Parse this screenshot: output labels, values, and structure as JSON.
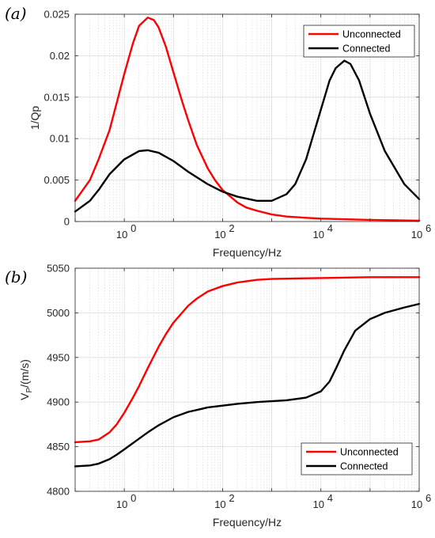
{
  "chart_data": [
    {
      "type": "line",
      "panel_label": "(a)",
      "xlabel": "Frequency/Hz",
      "ylabel": "1/Qp",
      "xscale": "log",
      "xlim": [
        0.1,
        1000000
      ],
      "ylim": [
        0,
        0.025
      ],
      "x_ticks": [
        {
          "value": 1,
          "label": "10",
          "exp": "0"
        },
        {
          "value": 100,
          "label": "10",
          "exp": "2"
        },
        {
          "value": 10000,
          "label": "10",
          "exp": "4"
        },
        {
          "value": 1000000,
          "label": "10",
          "exp": "6"
        }
      ],
      "y_ticks": [
        "0",
        "0.005",
        "0.01",
        "0.015",
        "0.02",
        "0.025"
      ],
      "grid": true,
      "legend_position": "top-right",
      "series": [
        {
          "name": "Unconnected",
          "color": "#ff0000",
          "x": [
            0.1,
            0.2,
            0.3,
            0.5,
            0.7,
            1,
            1.5,
            2,
            3,
            4,
            5,
            7,
            10,
            15,
            20,
            30,
            50,
            70,
            100,
            200,
            300,
            500,
            1000,
            2000,
            5000,
            10000,
            100000,
            1000000
          ],
          "y": [
            0.0025,
            0.005,
            0.0075,
            0.011,
            0.0143,
            0.0178,
            0.0215,
            0.0236,
            0.0246,
            0.0243,
            0.0234,
            0.0211,
            0.018,
            0.0145,
            0.0122,
            0.0092,
            0.0064,
            0.005,
            0.0038,
            0.0023,
            0.0017,
            0.0013,
            0.00085,
            0.0006,
            0.00045,
            0.00035,
            0.0002,
            0.0001
          ]
        },
        {
          "name": "Connected",
          "color": "#000000",
          "x": [
            0.1,
            0.2,
            0.3,
            0.5,
            1,
            2,
            3,
            5,
            10,
            20,
            50,
            100,
            200,
            500,
            1000,
            2000,
            3000,
            5000,
            10000,
            15000,
            20000,
            30000,
            40000,
            60000,
            100000,
            200000,
            500000,
            1000000
          ],
          "y": [
            0.0012,
            0.0025,
            0.0038,
            0.0057,
            0.0075,
            0.0085,
            0.0086,
            0.0083,
            0.0073,
            0.006,
            0.0045,
            0.0036,
            0.003,
            0.0025,
            0.0025,
            0.0033,
            0.0045,
            0.0075,
            0.0135,
            0.017,
            0.0185,
            0.0194,
            0.019,
            0.017,
            0.013,
            0.0085,
            0.0045,
            0.0027
          ]
        }
      ]
    },
    {
      "type": "line",
      "panel_label": "(b)",
      "xlabel": "Frequency/Hz",
      "ylabel": "V",
      "ylabel_sub": "P",
      "ylabel_rest": "/(m/s)",
      "xscale": "log",
      "xlim": [
        0.1,
        1000000
      ],
      "ylim": [
        4800,
        5050
      ],
      "x_ticks": [
        {
          "value": 1,
          "label": "10",
          "exp": "0"
        },
        {
          "value": 100,
          "label": "10",
          "exp": "2"
        },
        {
          "value": 10000,
          "label": "10",
          "exp": "4"
        },
        {
          "value": 1000000,
          "label": "10",
          "exp": "6"
        }
      ],
      "y_ticks": [
        "4800",
        "4850",
        "4900",
        "4950",
        "5000",
        "5050"
      ],
      "grid": true,
      "legend_position": "bottom-right",
      "series": [
        {
          "name": "Unconnected",
          "color": "#ff0000",
          "x": [
            0.1,
            0.2,
            0.3,
            0.5,
            0.7,
            1,
            1.5,
            2,
            3,
            5,
            7,
            10,
            20,
            30,
            50,
            100,
            200,
            500,
            1000,
            10000,
            100000,
            1000000
          ],
          "y": [
            4855,
            4856,
            4858,
            4866,
            4875,
            4888,
            4905,
            4918,
            4938,
            4962,
            4976,
            4989,
            5008,
            5016,
            5024,
            5030,
            5034,
            5037,
            5038,
            5039,
            5040,
            5040
          ]
        },
        {
          "name": "Connected",
          "color": "#000000",
          "x": [
            0.1,
            0.2,
            0.3,
            0.5,
            0.7,
            1,
            2,
            3,
            5,
            10,
            20,
            50,
            100,
            200,
            500,
            1000,
            2000,
            5000,
            10000,
            15000,
            20000,
            30000,
            50000,
            100000,
            200000,
            500000,
            1000000
          ],
          "y": [
            4828,
            4829,
            4831,
            4836,
            4841,
            4847,
            4859,
            4866,
            4874,
            4883,
            4889,
            4894,
            4896,
            4898,
            4900,
            4901,
            4902,
            4905,
            4912,
            4923,
            4937,
            4958,
            4980,
            4993,
            5000,
            5006,
            5010
          ]
        }
      ]
    }
  ]
}
